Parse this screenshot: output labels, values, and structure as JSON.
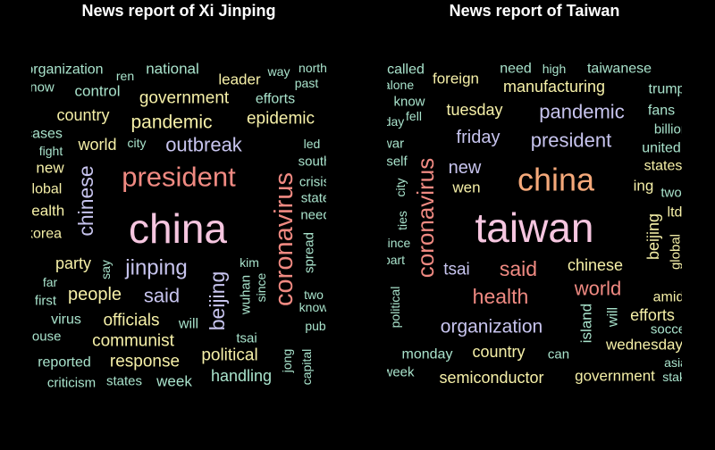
{
  "colors": {
    "background": "#000000",
    "title": "#ffffff",
    "palette": {
      "pink": "#f6c6e0",
      "orange": "#f5a97a",
      "salmon": "#f08a82",
      "lavender": "#c7c4ee",
      "mint": "#a9e3cc",
      "yellow": "#f6f0a8",
      "gray": "#cfcfcf",
      "aqua": "#98d8d2"
    }
  },
  "chart_data": [
    {
      "type": "wordcloud",
      "title": "News report of Xi Jinping",
      "words": [
        {
          "text": "china",
          "weight": 100,
          "color": "pink",
          "rot": 0
        },
        {
          "text": "president",
          "weight": 56,
          "color": "salmon",
          "rot": 0
        },
        {
          "text": "coronavirus",
          "weight": 50,
          "color": "salmon",
          "rot": -90
        },
        {
          "text": "chinese",
          "weight": 34,
          "color": "lavender",
          "rot": -90
        },
        {
          "text": "jinping",
          "weight": 38,
          "color": "lavender",
          "rot": 0
        },
        {
          "text": "beijing",
          "weight": 34,
          "color": "lavender",
          "rot": -90
        },
        {
          "text": "outbreak",
          "weight": 32,
          "color": "lavender",
          "rot": 0
        },
        {
          "text": "pandemic",
          "weight": 28,
          "color": "yellow",
          "rot": 0
        },
        {
          "text": "said",
          "weight": 30,
          "color": "lavender",
          "rot": 0
        },
        {
          "text": "people",
          "weight": 26,
          "color": "yellow",
          "rot": 0
        },
        {
          "text": "government",
          "weight": 24,
          "color": "yellow",
          "rot": 0
        },
        {
          "text": "epidemic",
          "weight": 24,
          "color": "yellow",
          "rot": 0
        },
        {
          "text": "officials",
          "weight": 24,
          "color": "yellow",
          "rot": 0
        },
        {
          "text": "communist",
          "weight": 24,
          "color": "yellow",
          "rot": 0
        },
        {
          "text": "response",
          "weight": 24,
          "color": "yellow",
          "rot": 0
        },
        {
          "text": "political",
          "weight": 24,
          "color": "yellow",
          "rot": 0
        },
        {
          "text": "country",
          "weight": 22,
          "color": "yellow",
          "rot": 0
        },
        {
          "text": "world",
          "weight": 22,
          "color": "yellow",
          "rot": 0
        },
        {
          "text": "party",
          "weight": 20,
          "color": "yellow",
          "rot": 0
        },
        {
          "text": "handling",
          "weight": 20,
          "color": "mint",
          "rot": 0
        },
        {
          "text": "leader",
          "weight": 18,
          "color": "yellow",
          "rot": 0
        },
        {
          "text": "national",
          "weight": 18,
          "color": "mint",
          "rot": 0
        },
        {
          "text": "control",
          "weight": 18,
          "color": "mint",
          "rot": 0
        },
        {
          "text": "efforts",
          "weight": 16,
          "color": "mint",
          "rot": 0
        },
        {
          "text": "spread",
          "weight": 14,
          "color": "mint",
          "rot": -90
        },
        {
          "text": "wuhan",
          "weight": 14,
          "color": "mint",
          "rot": -90
        },
        {
          "text": "week",
          "weight": 18,
          "color": "mint",
          "rot": 0
        },
        {
          "text": "virus",
          "weight": 16,
          "color": "mint",
          "rot": 0
        },
        {
          "text": "will",
          "weight": 16,
          "color": "mint",
          "rot": 0
        },
        {
          "text": "new",
          "weight": 18,
          "color": "yellow",
          "rot": 0
        },
        {
          "text": "tsai",
          "weight": 14,
          "color": "mint",
          "rot": 0
        },
        {
          "text": "reported",
          "weight": 16,
          "color": "mint",
          "rot": 0
        },
        {
          "text": "states",
          "weight": 14,
          "color": "mint",
          "rot": 0
        },
        {
          "text": "criticism",
          "weight": 14,
          "color": "mint",
          "rot": 0
        },
        {
          "text": "first",
          "weight": 14,
          "color": "mint",
          "rot": 0
        },
        {
          "text": "organization",
          "weight": 16,
          "color": "mint",
          "rot": 0
        },
        {
          "text": "city",
          "weight": 12,
          "color": "mint",
          "rot": 0
        },
        {
          "text": "fight",
          "weight": 12,
          "color": "mint",
          "rot": 0
        },
        {
          "text": "ren",
          "weight": 12,
          "color": "mint",
          "rot": 0
        },
        {
          "text": "way",
          "weight": 12,
          "color": "mint",
          "rot": 0
        },
        {
          "text": "north",
          "weight": 12,
          "color": "mint",
          "rot": 0
        },
        {
          "text": "past",
          "weight": 12,
          "color": "mint",
          "rot": 0
        },
        {
          "text": "led",
          "weight": 12,
          "color": "mint",
          "rot": 0
        },
        {
          "text": "kim",
          "weight": 12,
          "color": "mint",
          "rot": 0
        },
        {
          "text": "since",
          "weight": 12,
          "color": "mint",
          "rot": -90
        },
        {
          "text": "jong",
          "weight": 12,
          "color": "mint",
          "rot": -90
        },
        {
          "text": "capital",
          "weight": 12,
          "color": "mint",
          "rot": -90
        },
        {
          "text": "say",
          "weight": 12,
          "color": "mint",
          "rot": -90
        },
        {
          "text": "far",
          "weight": 12,
          "color": "mint",
          "rot": 0
        },
        {
          "text": "two",
          "weight": 12,
          "color": "mint",
          "rot": 0
        },
        {
          "text": "know",
          "weight": 12,
          "color": "mint",
          "rot": 0
        },
        {
          "text": "pub",
          "weight": 12,
          "color": "mint",
          "rot": 0
        },
        {
          "text": "crisis",
          "weight": 14,
          "color": "mint",
          "rot": 0
        },
        {
          "text": "state",
          "weight": 14,
          "color": "mint",
          "rot": 0
        },
        {
          "text": "need",
          "weight": 14,
          "color": "mint",
          "rot": 0
        },
        {
          "text": "south",
          "weight": 14,
          "color": "mint",
          "rot": 0
        },
        {
          "text": "global",
          "weight": 16,
          "color": "yellow",
          "rot": 0
        },
        {
          "text": "health",
          "weight": 18,
          "color": "yellow",
          "rot": 0
        },
        {
          "text": "korea",
          "weight": 16,
          "color": "yellow",
          "rot": 0
        },
        {
          "text": "cases",
          "weight": 16,
          "color": "mint",
          "rot": 0
        },
        {
          "text": "now",
          "weight": 14,
          "color": "mint",
          "rot": 0
        },
        {
          "text": "house",
          "weight": 14,
          "color": "mint",
          "rot": 0
        }
      ]
    },
    {
      "type": "wordcloud",
      "title": "News report of Taiwan",
      "words": [
        {
          "text": "taiwan",
          "weight": 100,
          "color": "pink",
          "rot": 0
        },
        {
          "text": "china",
          "weight": 70,
          "color": "orange",
          "rot": 0
        },
        {
          "text": "coronavirus",
          "weight": 42,
          "color": "salmon",
          "rot": -90
        },
        {
          "text": "said",
          "weight": 34,
          "color": "salmon",
          "rot": 0
        },
        {
          "text": "health",
          "weight": 34,
          "color": "salmon",
          "rot": 0
        },
        {
          "text": "world",
          "weight": 32,
          "color": "salmon",
          "rot": 0
        },
        {
          "text": "pandemic",
          "weight": 30,
          "color": "lavender",
          "rot": 0
        },
        {
          "text": "president",
          "weight": 30,
          "color": "lavender",
          "rot": 0
        },
        {
          "text": "organization",
          "weight": 28,
          "color": "lavender",
          "rot": 0
        },
        {
          "text": "friday",
          "weight": 26,
          "color": "lavender",
          "rot": 0
        },
        {
          "text": "new",
          "weight": 26,
          "color": "lavender",
          "rot": 0
        },
        {
          "text": "tsai",
          "weight": 24,
          "color": "lavender",
          "rot": 0
        },
        {
          "text": "chinese",
          "weight": 22,
          "color": "yellow",
          "rot": 0
        },
        {
          "text": "manufacturing",
          "weight": 22,
          "color": "yellow",
          "rot": 0
        },
        {
          "text": "tuesday",
          "weight": 22,
          "color": "yellow",
          "rot": 0
        },
        {
          "text": "country",
          "weight": 22,
          "color": "yellow",
          "rot": 0
        },
        {
          "text": "semiconductor",
          "weight": 22,
          "color": "yellow",
          "rot": 0
        },
        {
          "text": "beijing",
          "weight": 22,
          "color": "yellow",
          "rot": -90
        },
        {
          "text": "efforts",
          "weight": 20,
          "color": "yellow",
          "rot": 0
        },
        {
          "text": "wednesday",
          "weight": 18,
          "color": "yellow",
          "rot": 0
        },
        {
          "text": "foreign",
          "weight": 18,
          "color": "yellow",
          "rot": 0
        },
        {
          "text": "wen",
          "weight": 18,
          "color": "yellow",
          "rot": 0
        },
        {
          "text": "government",
          "weight": 18,
          "color": "yellow",
          "rot": 0
        },
        {
          "text": "island",
          "weight": 18,
          "color": "mint",
          "rot": -90
        },
        {
          "text": "will",
          "weight": 16,
          "color": "mint",
          "rot": -90
        },
        {
          "text": "taiwanese",
          "weight": 16,
          "color": "mint",
          "rot": 0
        },
        {
          "text": "need",
          "weight": 16,
          "color": "mint",
          "rot": 0
        },
        {
          "text": "trump",
          "weight": 16,
          "color": "mint",
          "rot": 0
        },
        {
          "text": "fans",
          "weight": 16,
          "color": "mint",
          "rot": 0
        },
        {
          "text": "ing",
          "weight": 18,
          "color": "yellow",
          "rot": 0
        },
        {
          "text": "states",
          "weight": 16,
          "color": "yellow",
          "rot": 0
        },
        {
          "text": "united",
          "weight": 16,
          "color": "mint",
          "rot": 0
        },
        {
          "text": "ltd",
          "weight": 16,
          "color": "yellow",
          "rot": 0
        },
        {
          "text": "global",
          "weight": 14,
          "color": "yellow",
          "rot": -90
        },
        {
          "text": "billion",
          "weight": 14,
          "color": "mint",
          "rot": 0
        },
        {
          "text": "two",
          "weight": 14,
          "color": "mint",
          "rot": 0
        },
        {
          "text": "amid",
          "weight": 16,
          "color": "yellow",
          "rot": 0
        },
        {
          "text": "soccer",
          "weight": 14,
          "color": "mint",
          "rot": 0
        },
        {
          "text": "know",
          "weight": 14,
          "color": "mint",
          "rot": 0
        },
        {
          "text": "monday",
          "weight": 16,
          "color": "mint",
          "rot": 0
        },
        {
          "text": "can",
          "weight": 14,
          "color": "mint",
          "rot": 0
        },
        {
          "text": "asia",
          "weight": 12,
          "color": "mint",
          "rot": 0
        },
        {
          "text": "stake",
          "weight": 12,
          "color": "mint",
          "rot": 0
        },
        {
          "text": "high",
          "weight": 12,
          "color": "mint",
          "rot": 0
        },
        {
          "text": "fell",
          "weight": 12,
          "color": "mint",
          "rot": 0
        },
        {
          "text": "city",
          "weight": 12,
          "color": "mint",
          "rot": -90
        },
        {
          "text": "ties",
          "weight": 12,
          "color": "mint",
          "rot": -90
        },
        {
          "text": "political",
          "weight": 12,
          "color": "mint",
          "rot": -90
        },
        {
          "text": "called",
          "weight": 16,
          "color": "mint",
          "rot": 0
        },
        {
          "text": "alone",
          "weight": 12,
          "color": "mint",
          "rot": 0
        },
        {
          "text": "self",
          "weight": 14,
          "color": "mint",
          "rot": 0
        },
        {
          "text": "war",
          "weight": 14,
          "color": "mint",
          "rot": 0
        },
        {
          "text": "part",
          "weight": 12,
          "color": "mint",
          "rot": 0
        },
        {
          "text": "since",
          "weight": 12,
          "color": "mint",
          "rot": 0
        },
        {
          "text": "week",
          "weight": 14,
          "color": "mint",
          "rot": 0
        },
        {
          "text": "day",
          "weight": 12,
          "color": "mint",
          "rot": 0
        }
      ]
    }
  ]
}
